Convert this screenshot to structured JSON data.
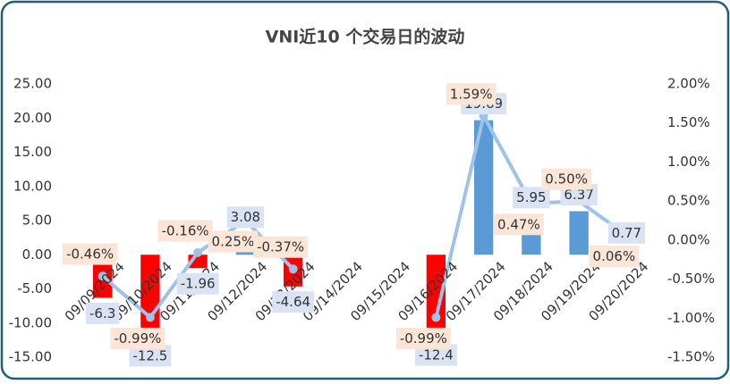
{
  "chart_data": {
    "type": "bar_line",
    "title": "VNI近10 个交易日的波动",
    "categories": [
      "09/09/2024",
      "09/10/2024",
      "09/11/2024",
      "09/12/2024",
      "09/13/2024",
      "09/14/2024",
      "09/15/2024",
      "09/16/2024",
      "09/17/2024",
      "09/18/2024",
      "09/19/2024",
      "09/20/2024"
    ],
    "series": [
      {
        "type": "bar",
        "axis": "y",
        "values": [
          -6.3,
          -12.5,
          -1.96,
          3.08,
          -4.64,
          null,
          null,
          -12.4,
          19.69,
          5.95,
          6.37,
          0.77
        ],
        "colors": [
          "#ff0000",
          "#ff0000",
          "#ff0000",
          "#5b9bd5",
          "#ff0000",
          null,
          null,
          "#ff0000",
          "#5b9bd5",
          "#5b9bd5",
          "#5b9bd5",
          "#5b9bd5"
        ]
      },
      {
        "type": "line",
        "axis": "y2",
        "color": "#9dc3e6",
        "values": [
          -0.46,
          -0.99,
          -0.16,
          0.25,
          -0.37,
          null,
          null,
          -0.99,
          1.59,
          0.47,
          0.5,
          0.06
        ],
        "value_labels": [
          "-0.46%",
          "-0.99%",
          "-0.16%",
          "0.25%",
          "-0.37%",
          null,
          null,
          "-0.99%",
          "1.59%",
          "0.47%",
          "0.50%",
          "0.06%"
        ]
      }
    ],
    "ylim": [
      -15,
      25
    ],
    "yticks": [
      {
        "value": -15,
        "label": "-15.00"
      },
      {
        "value": -10,
        "label": "-10.00"
      },
      {
        "value": -5,
        "label": "-5.00"
      },
      {
        "value": 0,
        "label": "0.00"
      },
      {
        "value": 5,
        "label": "5.00"
      },
      {
        "value": 10,
        "label": "10.00"
      },
      {
        "value": 15,
        "label": "15.00"
      },
      {
        "value": 20,
        "label": "20.00"
      },
      {
        "value": 25,
        "label": "25.00"
      }
    ],
    "y2lim": [
      -1.5,
      2
    ],
    "y2ticks": [
      {
        "value": -1.5,
        "label": "-1.50%"
      },
      {
        "value": -1,
        "label": "-1.00%"
      },
      {
        "value": -0.5,
        "label": "-0.50%"
      },
      {
        "value": 0,
        "label": "0.00%"
      },
      {
        "value": 0.5,
        "label": "0.50%"
      },
      {
        "value": 1,
        "label": "1.00%"
      },
      {
        "value": 1.5,
        "label": "1.50%"
      },
      {
        "value": 2,
        "label": "2.00%"
      }
    ]
  }
}
